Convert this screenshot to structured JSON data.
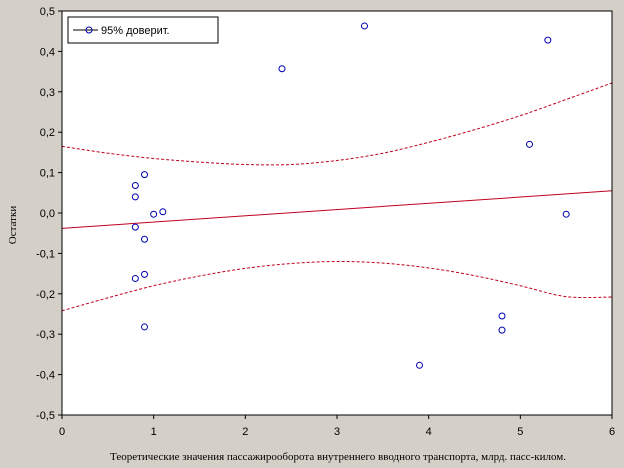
{
  "chart_data": {
    "type": "scatter",
    "xlabel": "Теоретические значения пассажирооборота внутреннего вводного транспорта, млрд. пасс-килом.",
    "ylabel": "Остатки",
    "xlim": [
      0,
      6
    ],
    "ylim": [
      -0.5,
      0.5
    ],
    "x_ticks": [
      "0",
      "1",
      "2",
      "3",
      "4",
      "5",
      "6"
    ],
    "y_ticks": [
      "-0,5",
      "-0,4",
      "-0,3",
      "-0,2",
      "-0,1",
      "0,0",
      "0,1",
      "0,2",
      "0,3",
      "0,4",
      "0,5"
    ],
    "grid": false,
    "legend": {
      "position": "top-left",
      "label": "95% доверит."
    },
    "points": [
      {
        "x": 0.8,
        "y": 0.068
      },
      {
        "x": 0.8,
        "y": 0.04
      },
      {
        "x": 0.8,
        "y": -0.035
      },
      {
        "x": 0.8,
        "y": -0.162
      },
      {
        "x": 0.9,
        "y": 0.095
      },
      {
        "x": 0.9,
        "y": -0.065
      },
      {
        "x": 0.9,
        "y": -0.152
      },
      {
        "x": 0.9,
        "y": -0.282
      },
      {
        "x": 1.0,
        "y": -0.003
      },
      {
        "x": 1.1,
        "y": 0.003
      },
      {
        "x": 2.4,
        "y": 0.357
      },
      {
        "x": 3.3,
        "y": 0.463
      },
      {
        "x": 3.9,
        "y": -0.377
      },
      {
        "x": 4.8,
        "y": -0.255
      },
      {
        "x": 4.8,
        "y": -0.29
      },
      {
        "x": 5.1,
        "y": 0.17
      },
      {
        "x": 5.3,
        "y": 0.428
      },
      {
        "x": 5.5,
        "y": -0.003
      }
    ],
    "fit_line": {
      "intercept": -0.038,
      "slope": 0.0155
    },
    "confidence_band": {
      "level": "95%",
      "x": [
        0,
        0.5,
        1,
        1.5,
        2,
        2.5,
        3,
        3.5,
        4,
        4.5,
        5,
        5.5,
        6
      ],
      "upper": [
        0.165,
        0.148,
        0.135,
        0.126,
        0.12,
        0.12,
        0.13,
        0.148,
        0.175,
        0.206,
        0.241,
        0.281,
        0.322
      ],
      "lower": [
        -0.242,
        -0.21,
        -0.18,
        -0.156,
        -0.137,
        -0.125,
        -0.12,
        -0.124,
        -0.136,
        -0.155,
        -0.18,
        -0.207,
        -0.208
      ]
    },
    "colors": {
      "points": "#0000b4",
      "line": "#c0001e",
      "background": "#d4d0c8",
      "plot_background": "#ffffff"
    }
  }
}
